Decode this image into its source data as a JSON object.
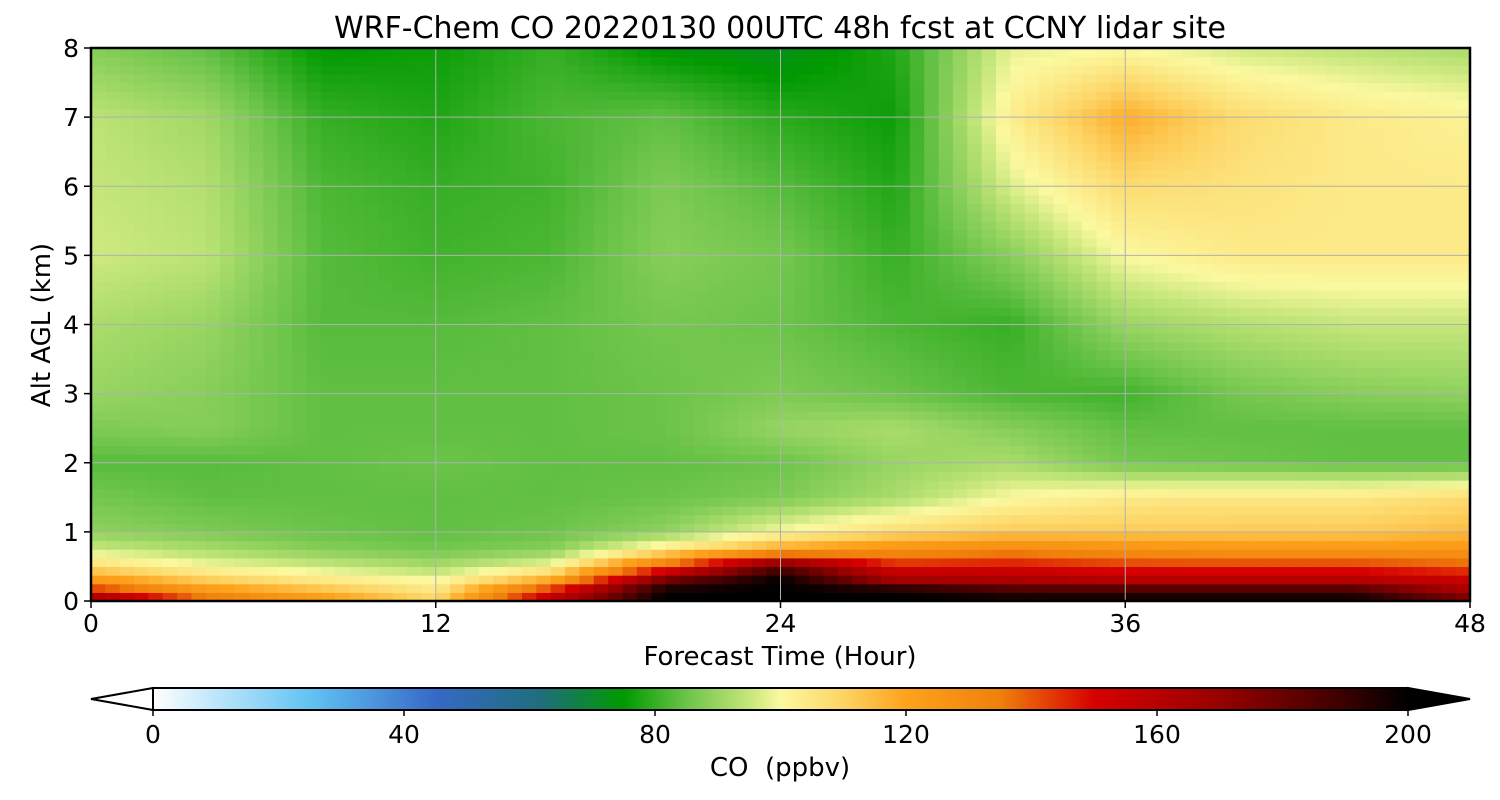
{
  "chart_data": {
    "type": "heatmap",
    "title": "WRF-Chem CO  20220130 00UTC 48h fcst at CCNY lidar site",
    "xlabel": "Forecast Time (Hour)",
    "ylabel": "Alt AGL (km)",
    "xlim": [
      0,
      48
    ],
    "ylim": [
      0,
      8
    ],
    "xticks": [
      0,
      12,
      24,
      36,
      48
    ],
    "yticks": [
      0,
      1,
      2,
      3,
      4,
      5,
      6,
      7,
      8
    ],
    "grid": true,
    "colorbar": {
      "label": "CO  (ppbv)",
      "orientation": "horizontal",
      "placement": "bottom",
      "range": [
        0,
        200
      ],
      "ticks": [
        0,
        40,
        80,
        120,
        160,
        200
      ],
      "extend": "both",
      "stops": [
        {
          "value": 0,
          "color": "#ffffff"
        },
        {
          "value": 10,
          "color": "#bde6fa"
        },
        {
          "value": 25,
          "color": "#62c3f3"
        },
        {
          "value": 45,
          "color": "#3669c7"
        },
        {
          "value": 62,
          "color": "#1e6e7b"
        },
        {
          "value": 75,
          "color": "#009900"
        },
        {
          "value": 85,
          "color": "#6cc44a"
        },
        {
          "value": 95,
          "color": "#c5e67a"
        },
        {
          "value": 100,
          "color": "#fbf9a0"
        },
        {
          "value": 110,
          "color": "#fdd464"
        },
        {
          "value": 120,
          "color": "#fea21c"
        },
        {
          "value": 135,
          "color": "#f0800c"
        },
        {
          "value": 150,
          "color": "#d70000"
        },
        {
          "value": 170,
          "color": "#980000"
        },
        {
          "value": 190,
          "color": "#3a0000"
        },
        {
          "value": 200,
          "color": "#000000"
        }
      ]
    },
    "x": [
      0,
      4,
      8,
      12,
      16,
      20,
      24,
      28,
      32,
      36,
      40,
      44,
      48
    ],
    "y": [
      0,
      0.15,
      0.3,
      0.5,
      0.75,
      1.0,
      1.5,
      2.0,
      2.5,
      3.0,
      4.0,
      5.0,
      6.0,
      7.0,
      8.0
    ],
    "z": [
      [
        175,
        140,
        125,
        110,
        160,
        200,
        200,
        200,
        200,
        200,
        200,
        200,
        180
      ],
      [
        148,
        125,
        115,
        105,
        148,
        200,
        200,
        200,
        190,
        190,
        190,
        190,
        165
      ],
      [
        125,
        112,
        105,
        100,
        120,
        180,
        200,
        168,
        165,
        162,
        162,
        162,
        155
      ],
      [
        108,
        100,
        96,
        92,
        100,
        140,
        185,
        148,
        150,
        145,
        145,
        145,
        140
      ],
      [
        96,
        92,
        88,
        86,
        88,
        105,
        120,
        128,
        132,
        128,
        125,
        125,
        125
      ],
      [
        89,
        87,
        85,
        84,
        85,
        89,
        100,
        108,
        112,
        112,
        112,
        112,
        115
      ],
      [
        86,
        84,
        84,
        84,
        84,
        85,
        87,
        92,
        100,
        104,
        105,
        105,
        108
      ],
      [
        83,
        83,
        84,
        85,
        84,
        84,
        85,
        90,
        92,
        86,
        85,
        84,
        84
      ],
      [
        87,
        88,
        84,
        84,
        84,
        85,
        90,
        92,
        88,
        84,
        84,
        84,
        84
      ],
      [
        90,
        88,
        84,
        84,
        84,
        85,
        87,
        85,
        82,
        81,
        86,
        88,
        89
      ],
      [
        92,
        90,
        83,
        83,
        84,
        86,
        85,
        82,
        80,
        90,
        93,
        95,
        95
      ],
      [
        96,
        94,
        83,
        81,
        82,
        88,
        86,
        80,
        88,
        100,
        104,
        104,
        104
      ],
      [
        95,
        93,
        82,
        80,
        81,
        87,
        83,
        78,
        97,
        108,
        106,
        104,
        104
      ],
      [
        94,
        91,
        80,
        78,
        82,
        84,
        79,
        76,
        103,
        118,
        108,
        104,
        102
      ],
      [
        88,
        84,
        75,
        76,
        80,
        74,
        72,
        78,
        98,
        100,
        96,
        94,
        92
      ]
    ]
  }
}
